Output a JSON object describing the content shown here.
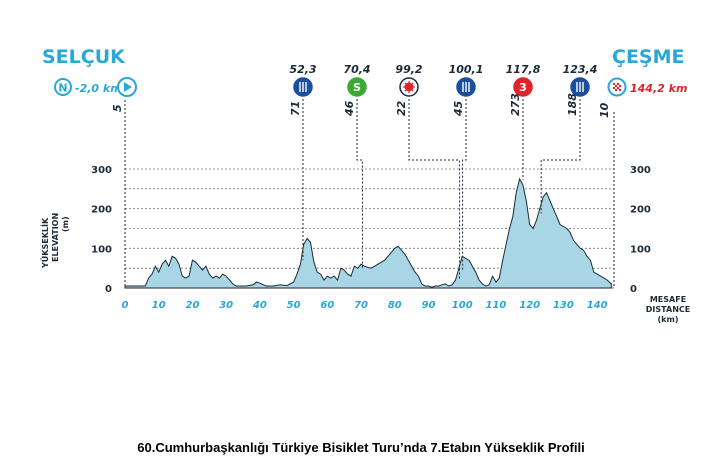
{
  "caption": "60.Cumhurbaşkanlığı Türkiye Bisiklet Turu’nda 7.Etabın Yükseklik Profili",
  "colors": {
    "cyan": "#29a8d6",
    "fill": "#a9d6e5",
    "line": "#1b2a3a",
    "red": "#e0242b",
    "green": "#3aaa35",
    "blue": "#1b4f9c"
  },
  "chart_data": {
    "type": "area",
    "start": {
      "city": "SELÇUK",
      "km_label": "-2,0 km",
      "north_letter": "N",
      "elevation_label": "5"
    },
    "finish": {
      "city": "ÇEŞME",
      "km_label": "144,2 km",
      "elevation_label": "10"
    },
    "ylabel": [
      "YÜKSEKLİK",
      "ELEVATION",
      "(m)"
    ],
    "xlabel": [
      "MESAFE",
      "DISTANCE",
      "(km)"
    ],
    "xlim": [
      0,
      145
    ],
    "ylim": [
      0,
      300
    ],
    "x_ticks": [
      "0",
      "10",
      "20",
      "30",
      "40",
      "50",
      "60",
      "70",
      "80",
      "90",
      "100",
      "110",
      "120",
      "130",
      "140"
    ],
    "y_ticks": [
      "0",
      "100",
      "200",
      "300"
    ],
    "markers": [
      {
        "km": 52.3,
        "km_label": "52,3",
        "elev_label": "71",
        "icon": "feed-zone-icon",
        "symbol": "",
        "marker_elev": 71
      },
      {
        "km": 70.4,
        "km_label": "70,4",
        "elev_label": "46",
        "icon": "sprint-icon",
        "symbol": "S",
        "marker_elev": 46
      },
      {
        "km": 99.2,
        "km_label": "99,2",
        "elev_label": "22",
        "icon": "hot-spot-icon",
        "symbol": "",
        "marker_elev": 22
      },
      {
        "km": 100.1,
        "km_label": "100,1",
        "elev_label": "45",
        "icon": "feed-zone-icon",
        "symbol": "",
        "marker_elev": 45
      },
      {
        "km": 117.8,
        "km_label": "117,8",
        "elev_label": "273",
        "icon": "climb-category-icon",
        "symbol": "3",
        "marker_elev": 273
      },
      {
        "km": 123.4,
        "km_label": "123,4",
        "elev_label": "188",
        "icon": "feed-zone-icon",
        "symbol": "",
        "marker_elev": 188
      }
    ],
    "profile": {
      "x": [
        0,
        6,
        7,
        8,
        9,
        10,
        11,
        12,
        13,
        14,
        15,
        16,
        17,
        18,
        19,
        20,
        21,
        22,
        23,
        24,
        25,
        26,
        27,
        28,
        29,
        30,
        31,
        32,
        33,
        34,
        36,
        38,
        39,
        40,
        41,
        42,
        44,
        46,
        48,
        50,
        51,
        52,
        53,
        54,
        55,
        56,
        57,
        58,
        59,
        60,
        61,
        62,
        63,
        64,
        65,
        66,
        67,
        68,
        69,
        70,
        71,
        72,
        73,
        74,
        75,
        76,
        77,
        78,
        79,
        80,
        81,
        82,
        83,
        84,
        85,
        86,
        87,
        88,
        89,
        90,
        91,
        92,
        93,
        94,
        95,
        96,
        97,
        98,
        99,
        100,
        101,
        102,
        103,
        104,
        105,
        106,
        107,
        108,
        109,
        110,
        111,
        112,
        113,
        114,
        115,
        116,
        117,
        118,
        119,
        120,
        121,
        122,
        123,
        124,
        125,
        126,
        127,
        128,
        129,
        130,
        131,
        132,
        133,
        134,
        135,
        136,
        137,
        138,
        139,
        140,
        141,
        142,
        143,
        144,
        144.2
      ],
      "y": [
        5,
        5,
        25,
        35,
        55,
        40,
        60,
        70,
        55,
        80,
        75,
        60,
        30,
        25,
        30,
        70,
        65,
        55,
        45,
        55,
        35,
        25,
        30,
        25,
        35,
        30,
        20,
        10,
        5,
        5,
        5,
        8,
        15,
        12,
        8,
        5,
        5,
        8,
        6,
        15,
        35,
        60,
        110,
        125,
        115,
        65,
        40,
        35,
        20,
        30,
        25,
        30,
        20,
        50,
        45,
        35,
        30,
        55,
        50,
        60,
        55,
        52,
        50,
        55,
        60,
        65,
        70,
        80,
        90,
        100,
        105,
        95,
        85,
        70,
        55,
        40,
        30,
        10,
        5,
        5,
        2,
        5,
        5,
        8,
        10,
        5,
        8,
        20,
        50,
        80,
        75,
        70,
        55,
        40,
        20,
        10,
        5,
        8,
        30,
        15,
        25,
        70,
        110,
        150,
        180,
        240,
        275,
        260,
        220,
        160,
        150,
        170,
        200,
        230,
        240,
        220,
        200,
        180,
        160,
        155,
        150,
        140,
        120,
        110,
        100,
        95,
        80,
        70,
        40,
        35,
        30,
        25,
        20,
        12,
        10
      ]
    }
  }
}
